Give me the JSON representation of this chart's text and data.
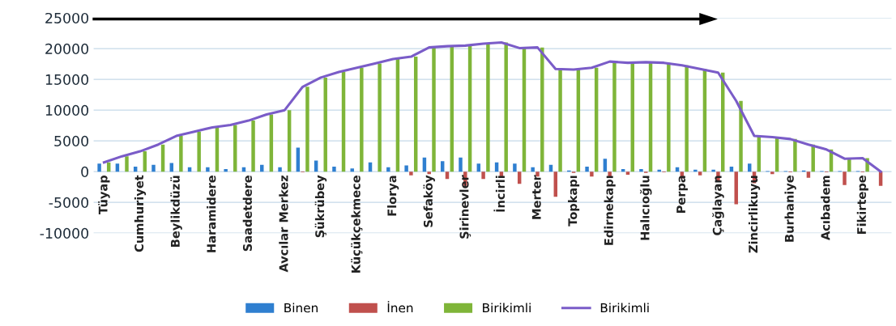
{
  "chart_data": {
    "type": "bar",
    "categories": [
      "Tüyap",
      null,
      "Cumhuriyet",
      null,
      "Beylikdüzü",
      null,
      "Haramidere",
      null,
      "Saadetdere",
      null,
      "Avcılar Merkez",
      null,
      "Şükrübey",
      null,
      "Küçükçekmece",
      null,
      "Florya",
      null,
      "Sefaköy",
      null,
      "Şirinevler",
      null,
      "İncirli",
      null,
      "Merter",
      null,
      "Topkapı",
      null,
      "Edirnekapı",
      null,
      "Halıcıoğlu",
      null,
      "Perpa",
      null,
      "Çağlayan",
      null,
      "Zincirlikuyu",
      null,
      "Burhaniye",
      null,
      "Acıbadem",
      null,
      "Fikirtepe",
      null
    ],
    "series": [
      {
        "name": "Binen",
        "color": "#2f7fd0",
        "values": [
          1300,
          1300,
          800,
          1100,
          1400,
          700,
          700,
          400,
          700,
          1100,
          700,
          3900,
          1800,
          800,
          500,
          1500,
          700,
          1000,
          2300,
          1700,
          2300,
          1300,
          1500,
          1300,
          700,
          1100,
          200,
          800,
          2100,
          400,
          400,
          300,
          700,
          300,
          300,
          800,
          1300,
          100,
          100,
          200,
          100,
          100,
          100,
          0
        ]
      },
      {
        "name": "İnen",
        "color": "#c0504d",
        "values": [
          0,
          0,
          0,
          0,
          0,
          0,
          0,
          0,
          0,
          0,
          0,
          -100,
          0,
          0,
          0,
          0,
          0,
          -600,
          -400,
          -1200,
          -2300,
          -1200,
          -1000,
          -2000,
          -800,
          -4100,
          -200,
          -800,
          -1000,
          -500,
          -200,
          -100,
          -1100,
          -600,
          -1500,
          -5300,
          -1900,
          -400,
          -100,
          -1000,
          -100,
          -2200,
          -100,
          -2300
        ]
      },
      {
        "name": "Birikimli",
        "color": "#7fb539",
        "values": [
          1500,
          2500,
          3300,
          4400,
          5800,
          6500,
          7200,
          7600,
          8300,
          9300,
          10000,
          13800,
          15300,
          16200,
          16900,
          17600,
          18300,
          18700,
          20200,
          20400,
          20500,
          20800,
          21000,
          20100,
          20200,
          16700,
          16600,
          16900,
          17900,
          17700,
          17800,
          17700,
          17300,
          16700,
          16100,
          11500,
          5800,
          5600,
          5300,
          4400,
          3600,
          2100,
          2200,
          0
        ]
      },
      {
        "name": "Birikimli",
        "type": "line",
        "color": "#7a5cc8",
        "marker": "none",
        "values": [
          1500,
          2500,
          3300,
          4400,
          5800,
          6500,
          7200,
          7600,
          8300,
          9300,
          10000,
          13800,
          15300,
          16200,
          16900,
          17600,
          18300,
          18700,
          20200,
          20400,
          20500,
          20800,
          21000,
          20100,
          20200,
          16700,
          16600,
          16900,
          17900,
          17700,
          17800,
          17700,
          17300,
          16700,
          16100,
          11500,
          5800,
          5600,
          5300,
          4400,
          3600,
          2100,
          2200,
          0
        ]
      }
    ],
    "ylim": [
      -10000,
      25000
    ],
    "yticks": [
      -10000,
      -5000,
      0,
      5000,
      10000,
      15000,
      20000,
      25000
    ],
    "grid": "y",
    "legend": "bottom"
  }
}
